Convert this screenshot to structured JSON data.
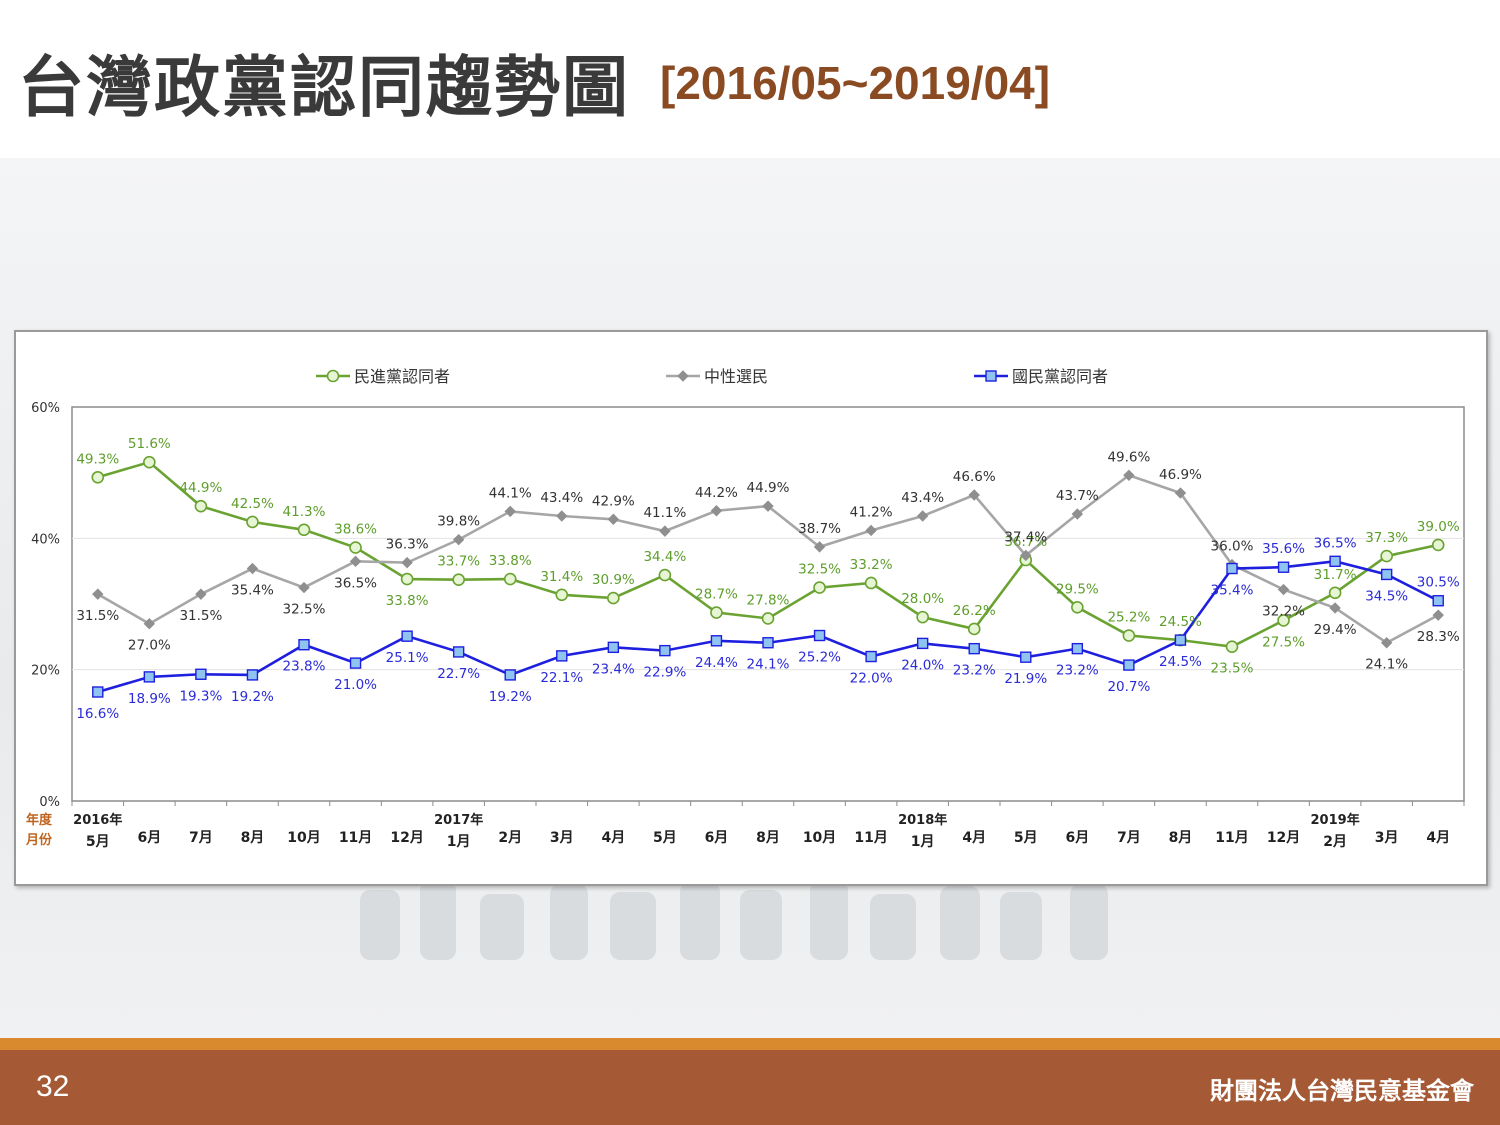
{
  "title": {
    "main": "台灣政黨認同趨勢圖",
    "range": "[2016/05~2019/04]"
  },
  "footer": {
    "page_number": "32",
    "organization": "財團法人台灣民意基金會"
  },
  "colors": {
    "dpp": "#6aa332",
    "neutral": "#a6a6a6",
    "kmt": "#1f1fe0",
    "title_accent": "#8a4a22",
    "footer_bg": "#a55a35",
    "footer_stripe": "#d98a2e"
  },
  "chart_data": {
    "type": "line",
    "title": "",
    "ylim": [
      0,
      60
    ],
    "yticks": [
      "0%",
      "20%",
      "40%",
      "60%"
    ],
    "grid": true,
    "legend_position": "top",
    "row_labels": {
      "year": "年度",
      "month": "月份"
    },
    "years": [
      {
        "label": "2016年",
        "index": 0
      },
      {
        "label": "2017年",
        "index": 7
      },
      {
        "label": "2018年",
        "index": 16
      },
      {
        "label": "2019年",
        "index": 24
      }
    ],
    "categories": [
      "5月",
      "6月",
      "7月",
      "8月",
      "10月",
      "11月",
      "12月",
      "1月",
      "2月",
      "3月",
      "4月",
      "5月",
      "6月",
      "8月",
      "10月",
      "11月",
      "1月",
      "4月",
      "5月",
      "6月",
      "7月",
      "8月",
      "11月",
      "12月",
      "2月",
      "3月",
      "4月"
    ],
    "series": [
      {
        "name": "民進黨認同者",
        "marker": "circle",
        "values": [
          49.3,
          51.6,
          44.9,
          42.5,
          41.3,
          38.6,
          33.8,
          33.7,
          33.8,
          31.4,
          30.9,
          34.4,
          28.7,
          27.8,
          32.5,
          33.2,
          28.0,
          26.2,
          36.7,
          29.5,
          25.2,
          24.5,
          23.5,
          27.5,
          31.7,
          37.3,
          39.0
        ],
        "labels": [
          "49.3%",
          "51.6%",
          "44.9%",
          "42.5%",
          "41.3%",
          "38.6%",
          "33.8%",
          "33.7%",
          "33.8%",
          "31.4%",
          "30.9%",
          "34.4%",
          "28.7%",
          "27.8%",
          "32.5%",
          "33.2%",
          "28.0%",
          "26.2%",
          "36.7%",
          "29.5%",
          "25.2%",
          "24.5%",
          "23.5%",
          "27.5%",
          "31.7%",
          "37.3%",
          "39.0%"
        ]
      },
      {
        "name": "中性選民",
        "marker": "diamond",
        "values": [
          31.5,
          27.0,
          31.5,
          35.4,
          32.5,
          36.5,
          36.3,
          39.8,
          44.1,
          43.4,
          42.9,
          41.1,
          44.2,
          44.9,
          38.7,
          41.2,
          43.4,
          46.6,
          37.4,
          43.7,
          49.6,
          46.9,
          36.0,
          32.2,
          29.4,
          24.1,
          28.3
        ],
        "labels": [
          "31.5%",
          "27.0%",
          "31.5%",
          "35.4%",
          "32.5%",
          "36.5%",
          "36.3%",
          "39.8%",
          "44.1%",
          "43.4%",
          "42.9%",
          "41.1%",
          "44.2%",
          "44.9%",
          "38.7%",
          "41.2%",
          "43.4%",
          "46.6%",
          "37.4%",
          "43.7%",
          "49.6%",
          "46.9%",
          "36.0%",
          "32.2%",
          "29.4%",
          "24.1%",
          "28.3%"
        ]
      },
      {
        "name": "國民黨認同者",
        "marker": "square",
        "values": [
          16.6,
          18.9,
          19.3,
          19.2,
          23.8,
          21.0,
          25.1,
          22.7,
          19.2,
          22.1,
          23.4,
          22.9,
          24.4,
          24.1,
          25.2,
          22.0,
          24.0,
          23.2,
          21.9,
          23.2,
          20.7,
          24.5,
          35.4,
          35.6,
          36.5,
          34.5,
          30.5
        ],
        "labels": [
          "16.6%",
          "18.9%",
          "19.3%",
          "19.2%",
          "23.8%",
          "21.0%",
          "25.1%",
          "22.7%",
          "19.2%",
          "22.1%",
          "23.4%",
          "22.9%",
          "24.4%",
          "24.1%",
          "25.2%",
          "22.0%",
          "24.0%",
          "23.2%",
          "21.9%",
          "23.2%",
          "20.7%",
          "24.5%",
          "35.4%",
          "35.6%",
          "36.5%",
          "34.5%",
          "30.5%"
        ]
      }
    ]
  }
}
